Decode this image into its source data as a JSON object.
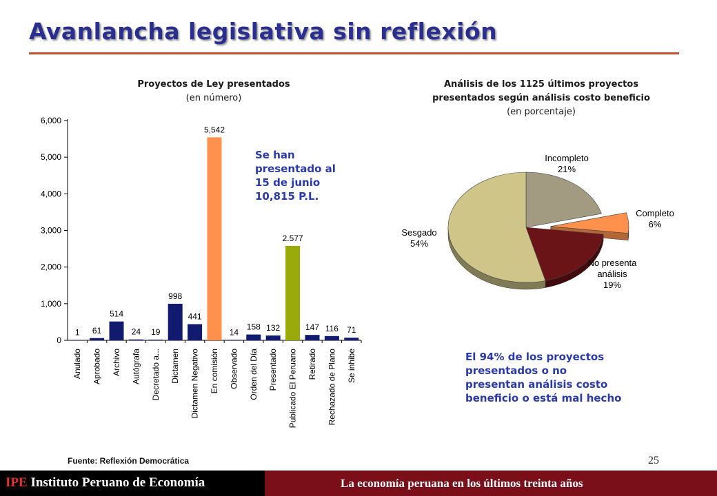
{
  "slide": {
    "title": "Avanlancha legislativa sin reflexión",
    "note_left": [
      "Se han",
      "presentado al",
      "15 de junio",
      "10,815 P.L."
    ],
    "note_right": [
      "El 94% de los proyectos",
      "presentados o no",
      "presentan análisis costo",
      "beneficio o está mal hecho"
    ],
    "source": "Fuente: Reflexión Democrática",
    "page_number": "25",
    "footer_ipe": "IPE",
    "footer_org": "Instituto Peruano de Economía",
    "footer_tagline": "La economía peruana en los últimos treinta años",
    "colors": {
      "title": "#2a2f8f",
      "rule": "#c0502a",
      "footer_right": "#7a0f1a"
    }
  },
  "chart_data": [
    {
      "type": "bar",
      "title": "Proyectos de Ley presentados",
      "subtitle": "(en número)",
      "categories": [
        "Anulado",
        "Aprobado",
        "Archivo",
        "Autógrafa",
        "Decretado a...",
        "Dictamen",
        "Dictamen Negativo",
        "En comisión",
        "Observado",
        "Orden del Día",
        "Presentado",
        "Publicado El Peruano",
        "Retirado",
        "Rechazado de Plano",
        "Se inhibe"
      ],
      "values": [
        1,
        61,
        514,
        24,
        19,
        998,
        441,
        5542,
        14,
        158,
        132,
        2577,
        147,
        116,
        71
      ],
      "value_labels": [
        "1",
        "61",
        "514",
        "24",
        "19",
        "998",
        "441",
        "5,542",
        "14",
        "158",
        "132",
        "2.577",
        "147",
        "116",
        "71"
      ],
      "colors": [
        "#101a6e",
        "#101a6e",
        "#101a6e",
        "#101a6e",
        "#101a6e",
        "#101a6e",
        "#101a6e",
        "#ff914d",
        "#101a6e",
        "#101a6e",
        "#101a6e",
        "#9aaa0a",
        "#101a6e",
        "#101a6e",
        "#101a6e"
      ],
      "yticks": [
        "0",
        "1,000",
        "2,000",
        "3,000",
        "4,000",
        "5,000",
        "6,000"
      ],
      "ytick_values": [
        0,
        1000,
        2000,
        3000,
        4000,
        5000,
        6000
      ],
      "ylim": [
        0,
        6000
      ]
    },
    {
      "type": "pie",
      "title": "Análisis de los 1125 últimos proyectos presentados según análisis costo beneficio",
      "title_lines": [
        "Análisis de los 1125 últimos proyectos",
        "presentados según análisis costo beneficio"
      ],
      "subtitle": "(en porcentaje)",
      "slices": [
        {
          "name": "Incompleto",
          "value": 21,
          "label": "21%",
          "color": "#a29b82"
        },
        {
          "name": "Completo",
          "value": 6,
          "label": "6%",
          "color": "#ff914d"
        },
        {
          "name": "No presenta análisis",
          "name_lines": [
            "No presenta",
            "análisis"
          ],
          "value": 19,
          "label": "19%",
          "color": "#6b1418"
        },
        {
          "name": "Sesgado",
          "value": 54,
          "label": "54%",
          "color": "#cfc589"
        }
      ]
    }
  ]
}
